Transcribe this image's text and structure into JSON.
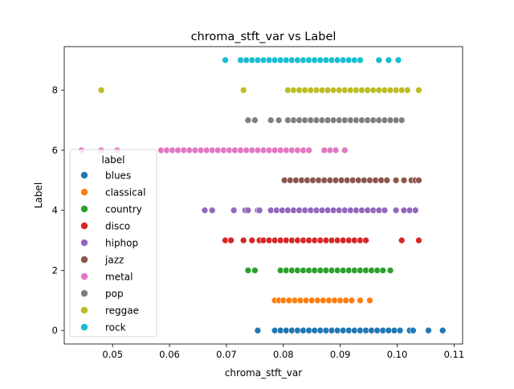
{
  "chart_data": {
    "type": "scatter",
    "title": "chroma_stft_var vs Label",
    "xlabel": "chroma_stft_var",
    "ylabel": "Label",
    "xlim": [
      0.0415,
      0.1115
    ],
    "ylim": [
      -0.45,
      9.45
    ],
    "x_ticks": [
      0.05,
      0.06,
      0.07,
      0.08,
      0.09,
      0.1,
      0.11
    ],
    "x_tick_labels": [
      "0.05",
      "0.06",
      "0.07",
      "0.08",
      "0.09",
      "0.10",
      "0.11"
    ],
    "y_ticks": [
      0,
      2,
      4,
      6,
      8
    ],
    "y_tick_labels": [
      "0",
      "2",
      "4",
      "6",
      "8"
    ],
    "grid": false,
    "legend": {
      "title": "label",
      "position": "center-left"
    },
    "series": [
      {
        "name": "blues",
        "y": 0,
        "color": "#1f77b4",
        "x": [
          0.0755,
          0.0785,
          0.0795,
          0.0805,
          0.0815,
          0.0825,
          0.0835,
          0.0845,
          0.0855,
          0.0865,
          0.0875,
          0.0885,
          0.0895,
          0.0905,
          0.0915,
          0.0925,
          0.0935,
          0.0945,
          0.0955,
          0.0965,
          0.0975,
          0.0985,
          0.0995,
          0.1005,
          0.1022,
          0.1028,
          0.1055,
          0.108
        ]
      },
      {
        "name": "classical",
        "y": 1,
        "color": "#ff7f0e",
        "x": [
          0.0785,
          0.0792,
          0.08,
          0.081,
          0.082,
          0.083,
          0.084,
          0.085,
          0.086,
          0.087,
          0.088,
          0.089,
          0.09,
          0.091,
          0.092,
          0.0935,
          0.0952
        ]
      },
      {
        "name": "country",
        "y": 2,
        "color": "#2ca02c",
        "x": [
          0.0738,
          0.075,
          0.0795,
          0.0805,
          0.0815,
          0.0825,
          0.0835,
          0.0845,
          0.0855,
          0.0865,
          0.0875,
          0.0885,
          0.0895,
          0.0905,
          0.0915,
          0.0925,
          0.0935,
          0.0945,
          0.0955,
          0.0965,
          0.0975,
          0.0988
        ]
      },
      {
        "name": "disco",
        "y": 3,
        "color": "#d62728",
        "x": [
          0.0698,
          0.0708,
          0.073,
          0.0745,
          0.0758,
          0.0765,
          0.0775,
          0.0785,
          0.0795,
          0.0805,
          0.0815,
          0.0825,
          0.0835,
          0.0845,
          0.0855,
          0.0865,
          0.0875,
          0.0885,
          0.0895,
          0.0905,
          0.0915,
          0.0925,
          0.0935,
          0.0945,
          0.1008,
          0.1038
        ]
      },
      {
        "name": "hiphop",
        "y": 4,
        "color": "#9467bd",
        "x": [
          0.0662,
          0.0675,
          0.0713,
          0.0733,
          0.0738,
          0.0755,
          0.0758,
          0.0778,
          0.0788,
          0.0798,
          0.0808,
          0.0818,
          0.0828,
          0.0838,
          0.0848,
          0.0858,
          0.0868,
          0.0878,
          0.0888,
          0.0898,
          0.0908,
          0.0918,
          0.0928,
          0.0938,
          0.0948,
          0.0958,
          0.0968,
          0.0978,
          0.0998,
          0.1012,
          0.1022,
          0.1032
        ]
      },
      {
        "name": "jazz",
        "y": 5,
        "color": "#8c564b",
        "x": [
          0.0802,
          0.0812,
          0.0822,
          0.0832,
          0.0842,
          0.0852,
          0.0862,
          0.0872,
          0.0882,
          0.0892,
          0.0902,
          0.0912,
          0.0922,
          0.0932,
          0.0942,
          0.0952,
          0.0962,
          0.0972,
          0.0982,
          0.0998,
          0.1012,
          0.1025,
          0.1032,
          0.1038
        ]
      },
      {
        "name": "metal",
        "y": 6,
        "color": "#e377c2",
        "x": [
          0.0445,
          0.048,
          0.0508,
          0.0585,
          0.0595,
          0.0605,
          0.0615,
          0.0625,
          0.0635,
          0.0645,
          0.0655,
          0.0665,
          0.0675,
          0.0685,
          0.0695,
          0.0705,
          0.0715,
          0.0725,
          0.0735,
          0.0745,
          0.0755,
          0.0765,
          0.0775,
          0.0785,
          0.0795,
          0.0805,
          0.0815,
          0.0825,
          0.0835,
          0.0845,
          0.0872,
          0.0882,
          0.0892,
          0.0908
        ]
      },
      {
        "name": "pop",
        "y": 7,
        "color": "#7f7f7f",
        "x": [
          0.0738,
          0.075,
          0.0778,
          0.0792,
          0.0808,
          0.0818,
          0.0828,
          0.0838,
          0.0848,
          0.0858,
          0.0868,
          0.0878,
          0.0888,
          0.0898,
          0.0908,
          0.0918,
          0.0928,
          0.0938,
          0.0948,
          0.0958,
          0.0968,
          0.0978,
          0.0988,
          0.0998,
          0.1008
        ]
      },
      {
        "name": "reggae",
        "y": 8,
        "color": "#bcbd22",
        "x": [
          0.048,
          0.073,
          0.0808,
          0.0818,
          0.0828,
          0.0838,
          0.0848,
          0.0858,
          0.0868,
          0.0878,
          0.0888,
          0.0898,
          0.0908,
          0.0918,
          0.0928,
          0.0938,
          0.0948,
          0.0958,
          0.0968,
          0.0978,
          0.0988,
          0.0998,
          0.1008,
          0.1018,
          0.1038
        ]
      },
      {
        "name": "rock",
        "y": 9,
        "color": "#17becf",
        "x": [
          0.0698,
          0.0725,
          0.0735,
          0.0745,
          0.0755,
          0.0765,
          0.0775,
          0.0785,
          0.0795,
          0.0805,
          0.0815,
          0.0825,
          0.0835,
          0.0845,
          0.0855,
          0.0865,
          0.0875,
          0.0885,
          0.0895,
          0.0905,
          0.0915,
          0.0925,
          0.0935,
          0.0968,
          0.0985,
          0.1002
        ]
      }
    ]
  }
}
